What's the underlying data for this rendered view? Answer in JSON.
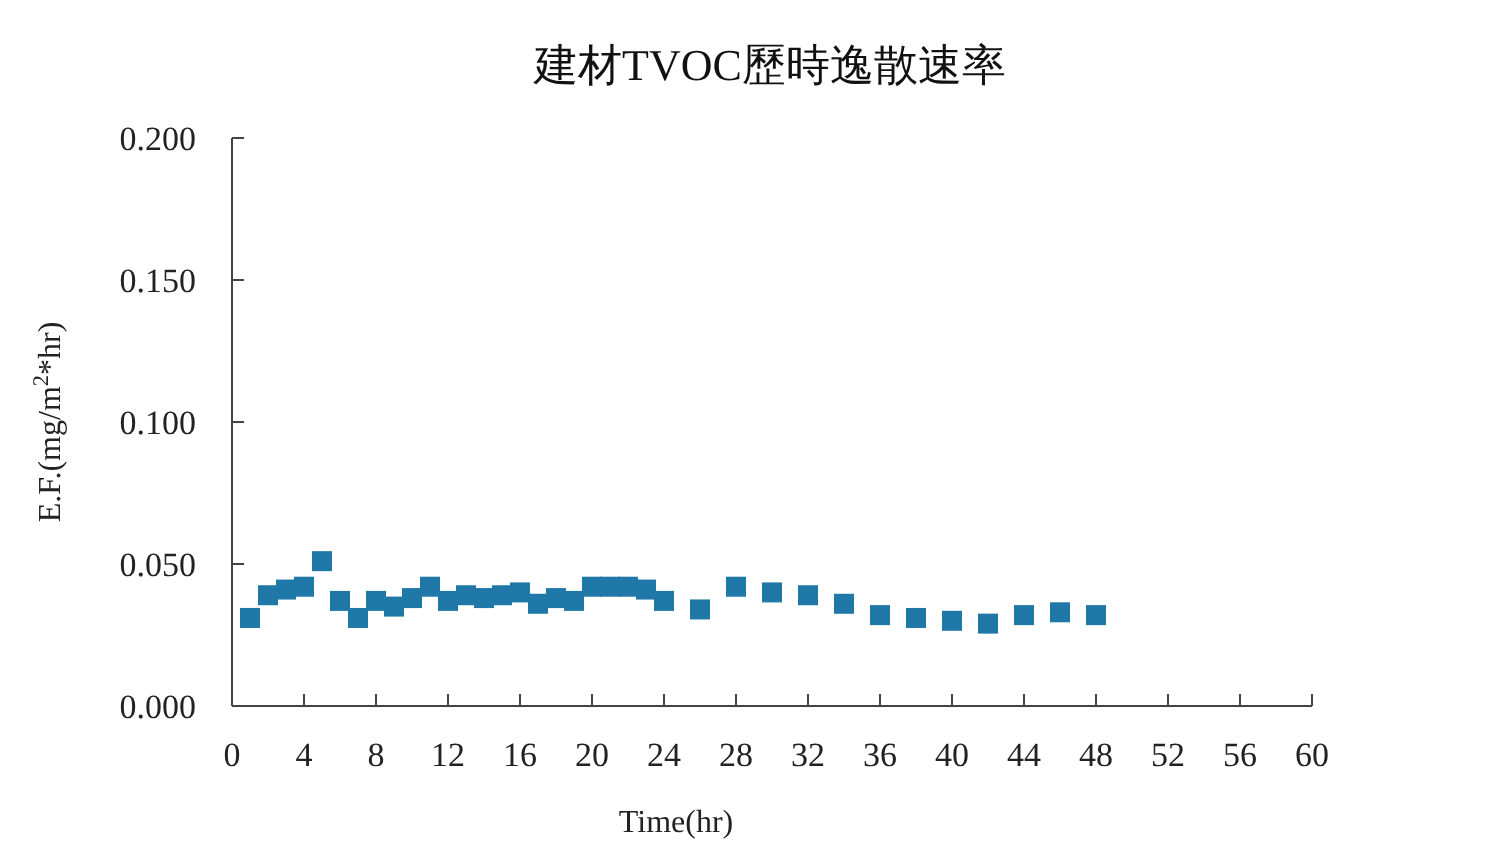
{
  "chart_data": {
    "type": "scatter",
    "title": "建材TVOC歷時逸散速率",
    "xlabel": "Time(hr)",
    "ylabel": "E.F.(mg/m$^{2}$*hr)",
    "marker": "square",
    "color": "#1f78a8",
    "x": [
      1,
      2,
      3,
      4,
      5,
      6,
      7,
      8,
      9,
      10,
      11,
      12,
      13,
      14,
      15,
      16,
      17,
      18,
      19,
      20,
      21,
      22,
      23,
      24,
      26,
      28,
      30,
      32,
      34,
      36,
      38,
      40,
      42,
      44,
      46,
      48
    ],
    "values": [
      0.031,
      0.039,
      0.041,
      0.042,
      0.051,
      0.037,
      0.031,
      0.037,
      0.035,
      0.038,
      0.042,
      0.037,
      0.039,
      0.038,
      0.039,
      0.04,
      0.036,
      0.038,
      0.037,
      0.042,
      0.042,
      0.042,
      0.041,
      0.037,
      0.034,
      0.042,
      0.04,
      0.039,
      0.036,
      0.032,
      0.031,
      0.03,
      0.029,
      0.032,
      0.033,
      0.032
    ],
    "xlim": [
      0,
      60
    ],
    "ylim": [
      0,
      0.2
    ],
    "xticks": [
      0,
      4,
      8,
      12,
      16,
      20,
      24,
      28,
      32,
      36,
      40,
      44,
      48,
      52,
      56,
      60
    ],
    "yticks": [
      {
        "value": 0,
        "label": "0.000"
      },
      {
        "value": 0.05,
        "label": "0.050"
      },
      {
        "value": 0.1,
        "label": "0.100"
      },
      {
        "value": 0.15,
        "label": "0.150"
      },
      {
        "value": 0.2,
        "label": "0.200"
      }
    ]
  }
}
